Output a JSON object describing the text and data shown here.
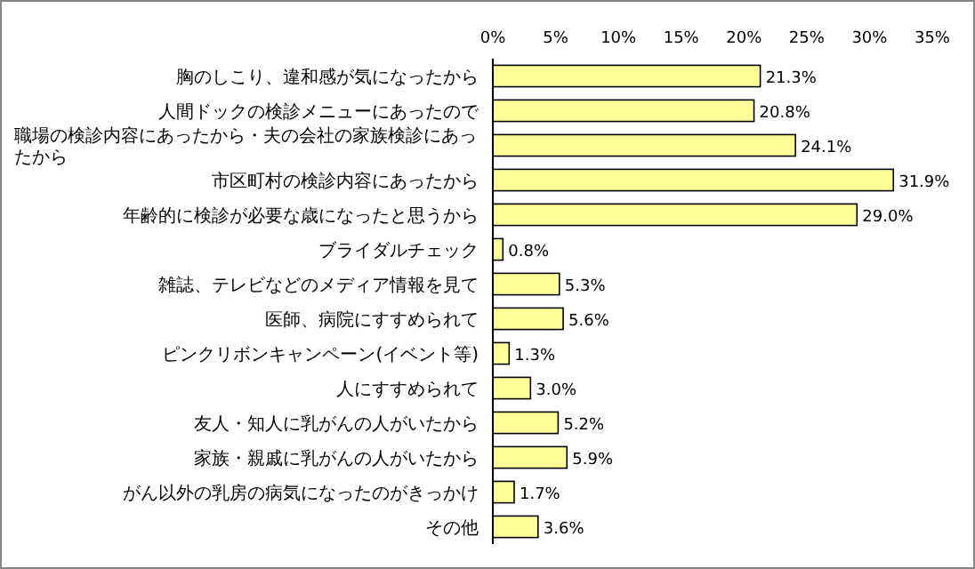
{
  "chart_data": {
    "type": "bar",
    "orientation": "horizontal",
    "categories": [
      "胸のしこり、違和感が気になったから",
      "人間ドックの検診メニューにあったので",
      "職場の検診内容にあったから・夫の会社の家族検診にあったから",
      "市区町村の検診内容にあったから",
      "年齢的に検診が必要な歳になったと思うから",
      "ブライダルチェック",
      "雑誌、テレビなどのメディア情報を見て",
      "医師、病院にすすめられて",
      "ピンクリボンキャンペーン(イベント等)",
      "人にすすめられて",
      "友人・知人に乳がんの人がいたから",
      "家族・親戚に乳がんの人がいたから",
      "がん以外の乳房の病気になったのがきっかけ",
      "その他"
    ],
    "values": [
      21.3,
      20.8,
      24.1,
      31.9,
      29.0,
      0.8,
      5.3,
      5.6,
      1.3,
      3.0,
      5.2,
      5.9,
      1.7,
      3.6
    ],
    "value_labels": [
      "21.3%",
      "20.8%",
      "24.1%",
      "31.9%",
      "29.0%",
      "0.8%",
      "5.3%",
      "5.6%",
      "1.3%",
      "3.0%",
      "5.2%",
      "5.9%",
      "1.7%",
      "3.6%"
    ],
    "color": "#ffff99",
    "xlim": [
      0,
      35
    ],
    "xticks": [
      {
        "value": 0,
        "label": "0%"
      },
      {
        "value": 5,
        "label": "5%"
      },
      {
        "value": 10,
        "label": "10%"
      },
      {
        "value": 15,
        "label": "15%"
      },
      {
        "value": 20,
        "label": "20%"
      },
      {
        "value": 25,
        "label": "25%"
      },
      {
        "value": 30,
        "label": "30%"
      },
      {
        "value": 35,
        "label": "35%"
      }
    ],
    "grid": false
  }
}
